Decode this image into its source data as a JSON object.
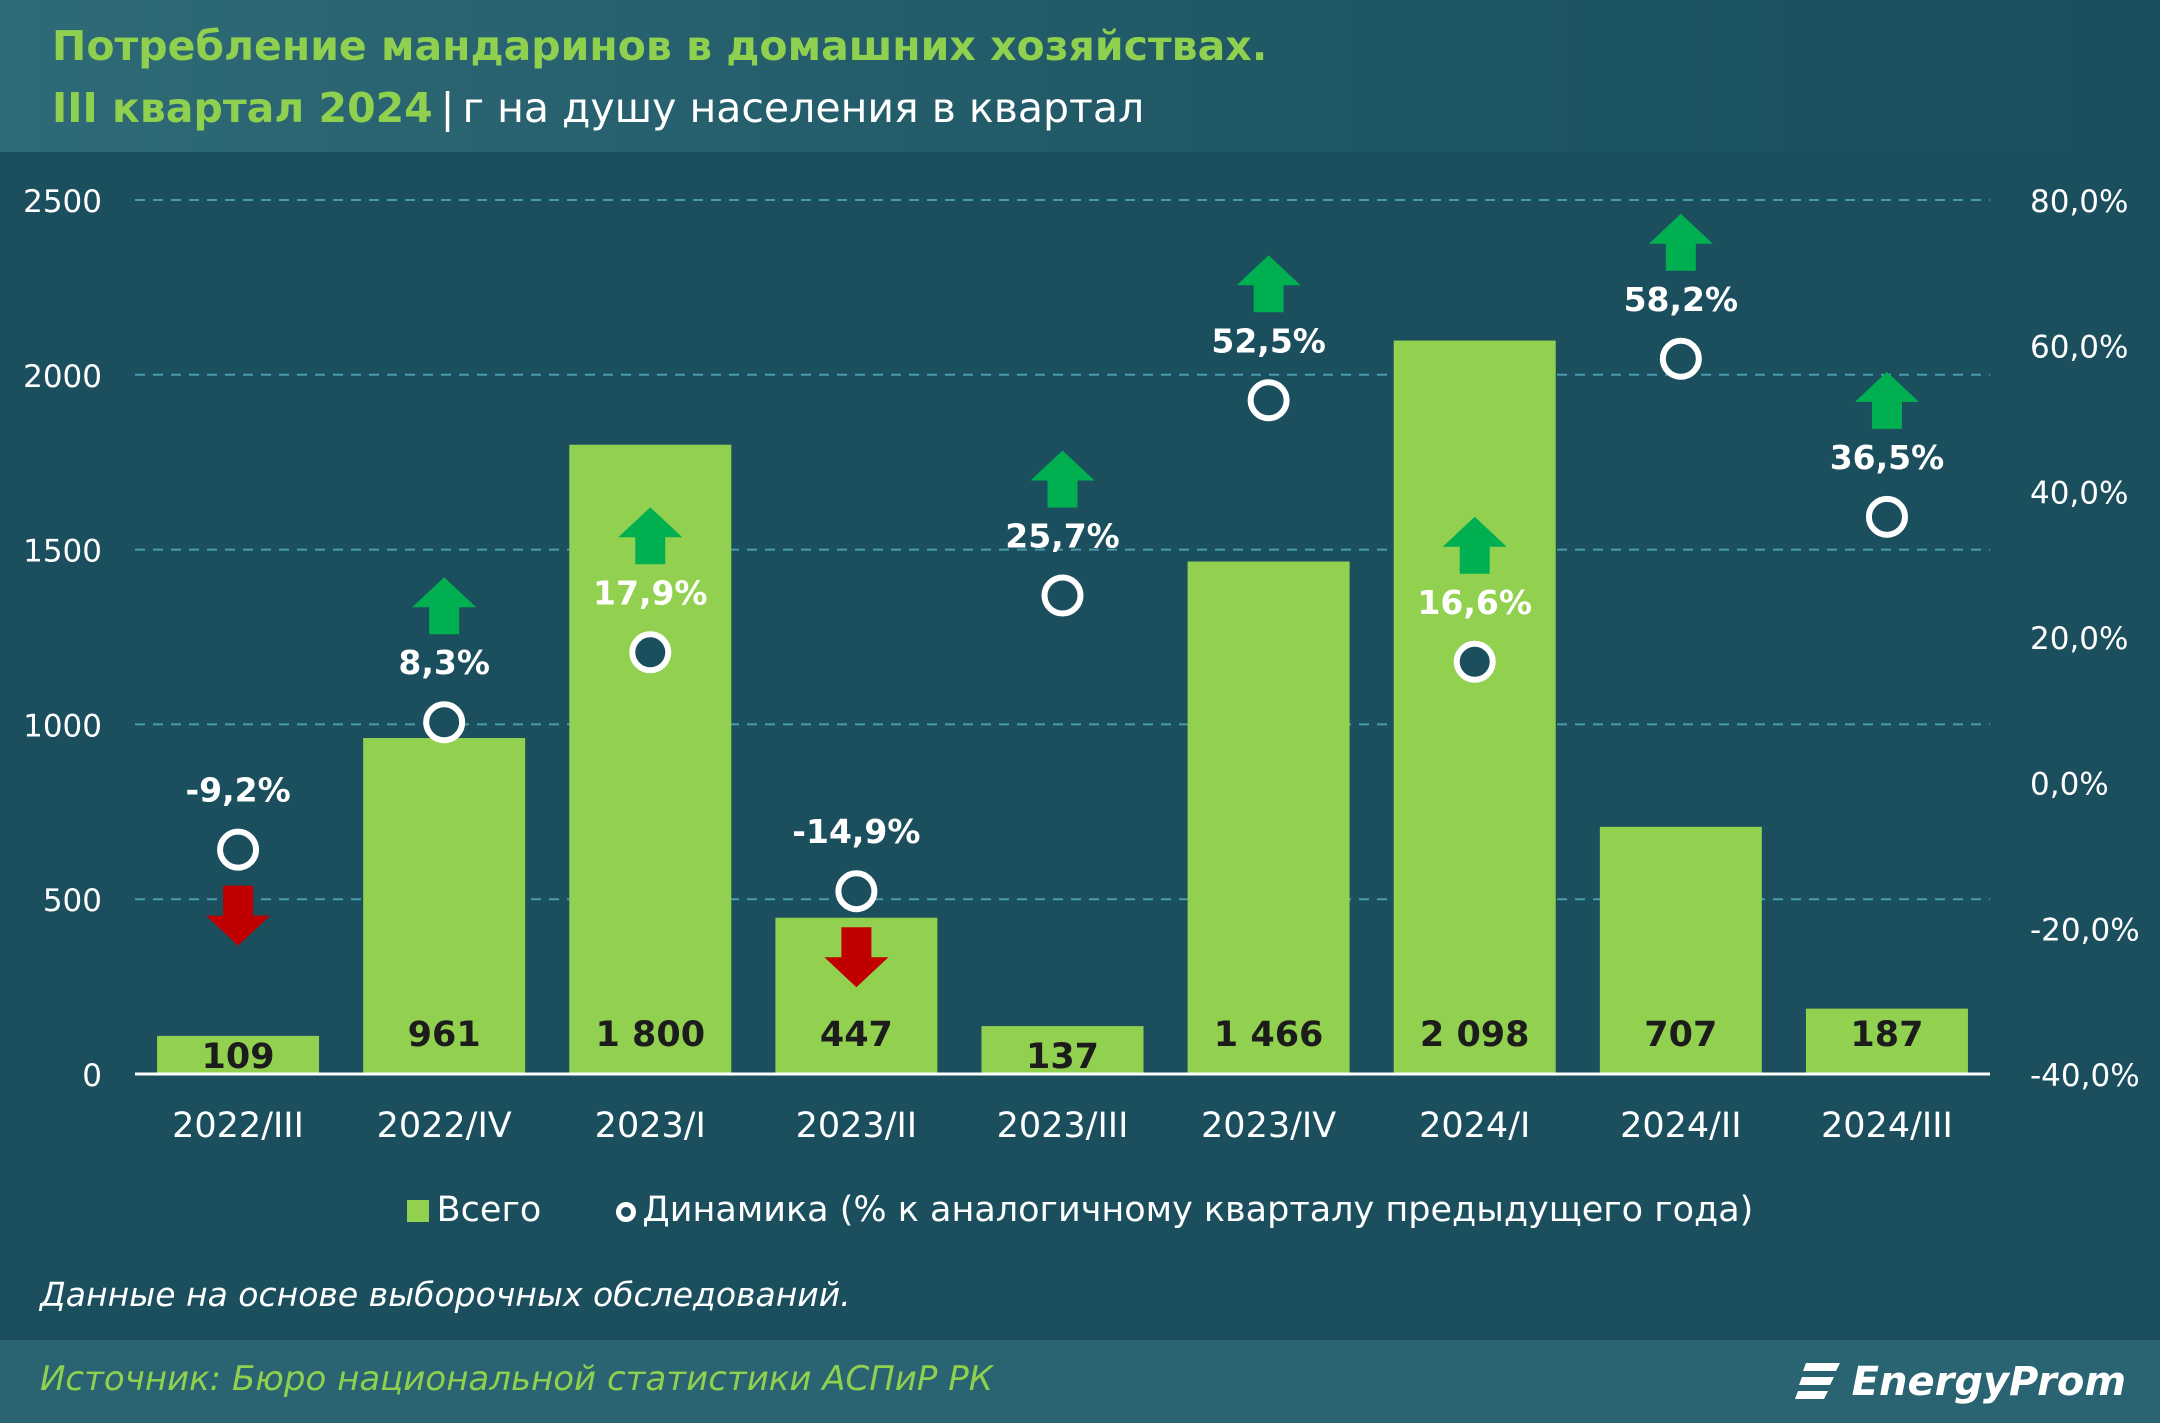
{
  "header": {
    "title_line1": "Потребление мандаринов в домашних хозяйствах.",
    "title_period": "III квартал 2024",
    "title_separator": "|",
    "title_unit": "г на душу населения в квартал"
  },
  "chart_data": {
    "type": "bar",
    "categories": [
      "2022/III",
      "2022/IV",
      "2023/I",
      "2023/II",
      "2023/III",
      "2023/IV",
      "2024/I",
      "2024/II",
      "2024/III"
    ],
    "series": [
      {
        "name": "Всего",
        "type": "bar",
        "axis": "left",
        "values": [
          109,
          961,
          1800,
          447,
          137,
          1466,
          2098,
          707,
          187
        ],
        "labels": [
          "109",
          "961",
          "1 800",
          "447",
          "137",
          "1 466",
          "2 098",
          "707",
          "187"
        ]
      },
      {
        "name": "Динамика (% к аналогичному кварталу предыдущего года)",
        "type": "scatter",
        "axis": "right",
        "values": [
          -9.2,
          8.3,
          17.9,
          -14.9,
          25.7,
          52.5,
          16.6,
          58.2,
          36.5
        ],
        "labels": [
          "-9,2%",
          "8,3%",
          "17,9%",
          "-14,9%",
          "25,7%",
          "52,5%",
          "16,6%",
          "58,2%",
          "36,5%"
        ]
      }
    ],
    "left_axis": {
      "ylim": [
        0,
        2500
      ],
      "ticks": [
        0,
        500,
        1000,
        1500,
        2000,
        2500
      ],
      "tick_labels": [
        "0",
        "500",
        "1000",
        "1500",
        "2000",
        "2500"
      ]
    },
    "right_axis": {
      "ylim": [
        -40,
        80
      ],
      "ticks": [
        -40,
        -20,
        0,
        20,
        40,
        60,
        80
      ],
      "tick_labels": [
        "-40,0%",
        "-20,0%",
        "0,0%",
        "20,0%",
        "40,0%",
        "60,0%",
        "80,0%"
      ]
    },
    "grid": true,
    "grid_style": "dashed",
    "legend_position": "bottom",
    "colors": {
      "bar": "#92d050",
      "up_arrow": "#00b050",
      "down_arrow": "#c00000",
      "grid": "#4a9aae",
      "marker_stroke": "#ffffff",
      "marker_fill": "#1b4f5e"
    }
  },
  "legend": {
    "items": [
      {
        "label": "Всего",
        "marker": "square"
      },
      {
        "label": "Динамика (% к аналогичному кварталу предыдущего года)",
        "marker": "circle"
      }
    ]
  },
  "note": "Данные на основе выборочных обследований.",
  "footer": {
    "source": "Источник: Бюро национальной статистики АСПиР РК",
    "logo_text": "EnergyProm"
  }
}
